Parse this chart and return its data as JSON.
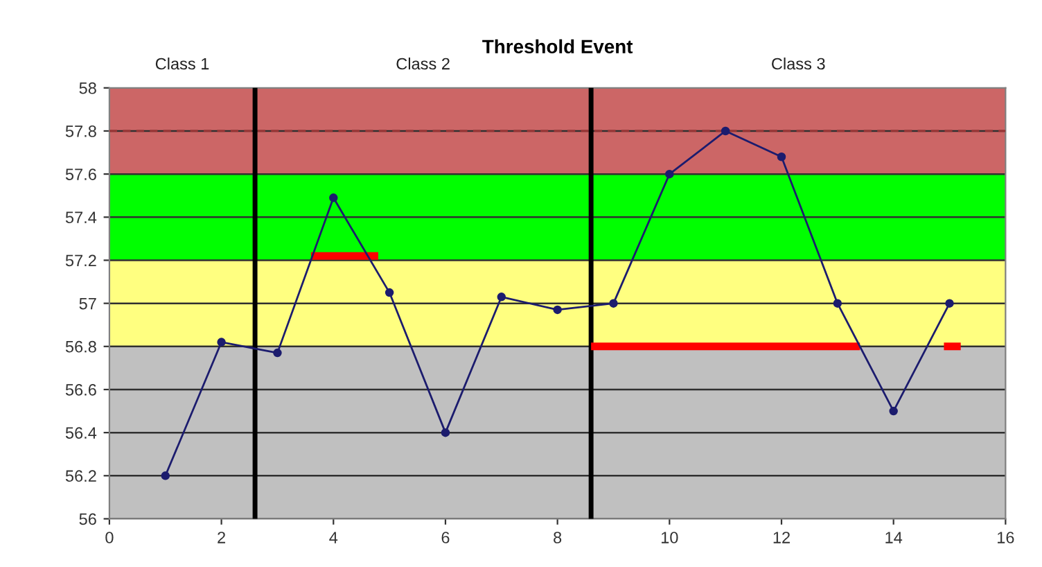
{
  "chart_data": {
    "type": "line",
    "title": "Threshold Event",
    "annotations": [
      "Class 1",
      "Class 2",
      "Class 3"
    ],
    "series": [
      {
        "type": "line",
        "color": "#1c1c6e",
        "marker": "circle",
        "x": [
          1,
          2,
          3,
          4,
          5,
          6,
          7,
          8,
          9,
          10,
          11,
          12,
          13,
          14,
          15
        ],
        "values": [
          56.2,
          56.82,
          56.77,
          57.49,
          57.05,
          56.4,
          57.03,
          56.97,
          57.0,
          57.6,
          57.8,
          57.68,
          57.0,
          56.5,
          57.0
        ]
      },
      {
        "type": "line",
        "color": "#ff0000",
        "marker": "none",
        "x": [
          3.6,
          4.8
        ],
        "values": [
          57.22,
          57.22
        ]
      },
      {
        "type": "line",
        "color": "#ff0000",
        "marker": "none",
        "x": [
          8.6,
          13.4
        ],
        "values": [
          56.8,
          56.8
        ]
      },
      {
        "type": "line",
        "color": "#ff0000",
        "marker": "none",
        "x": [
          14.9,
          15.2
        ],
        "values": [
          56.8,
          56.8
        ]
      }
    ],
    "bands": [
      {
        "axis": "y",
        "from": 56,
        "to": 56.8,
        "color": "#c0c0c0"
      },
      {
        "axis": "y",
        "from": 56.8,
        "to": 57.2,
        "color": "#ffff80"
      },
      {
        "axis": "y",
        "from": 57.2,
        "to": 57.6,
        "color": "#00ff00"
      },
      {
        "axis": "y",
        "from": 57.6,
        "to": 58,
        "color": "#cc6666"
      }
    ],
    "ref_lines": [
      {
        "axis": "x",
        "value": 2.6,
        "color": "#000000",
        "line_style": "solid"
      },
      {
        "axis": "x",
        "value": 8.6,
        "color": "#000000",
        "line_style": "solid"
      },
      {
        "axis": "y",
        "value": 57.8,
        "color": "#993333",
        "line_style": "dashed"
      }
    ],
    "xlim": [
      0,
      16
    ],
    "xticks": [
      0,
      2,
      4,
      6,
      8,
      10,
      12,
      14,
      16
    ],
    "ylim": [
      56,
      58
    ],
    "yticks": [
      56,
      56.2,
      56.4,
      56.6,
      56.8,
      57,
      57.2,
      57.4,
      57.6,
      57.8,
      58
    ],
    "grid": "y"
  }
}
